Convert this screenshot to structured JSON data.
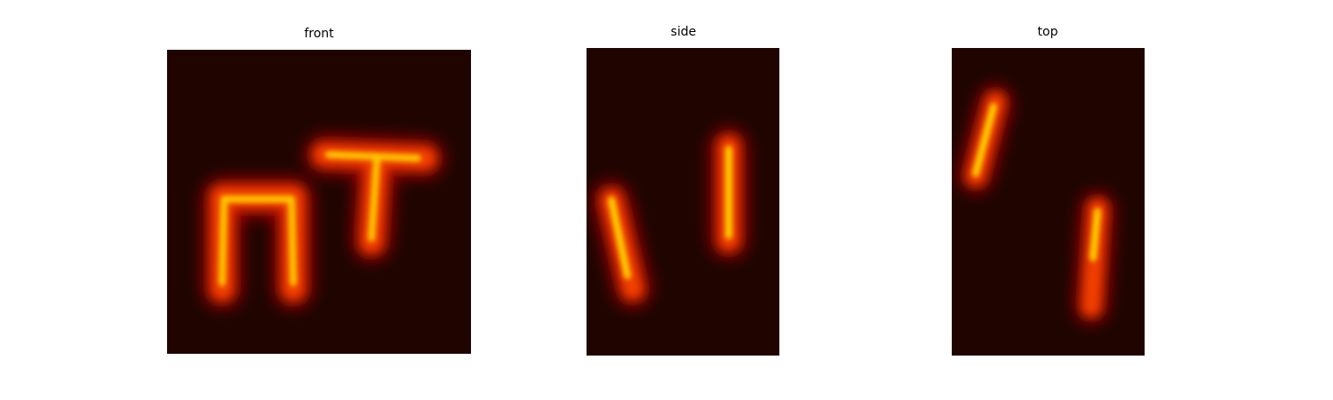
{
  "panels": [
    {
      "title": "front"
    },
    {
      "title": "side"
    },
    {
      "title": "top"
    }
  ]
}
